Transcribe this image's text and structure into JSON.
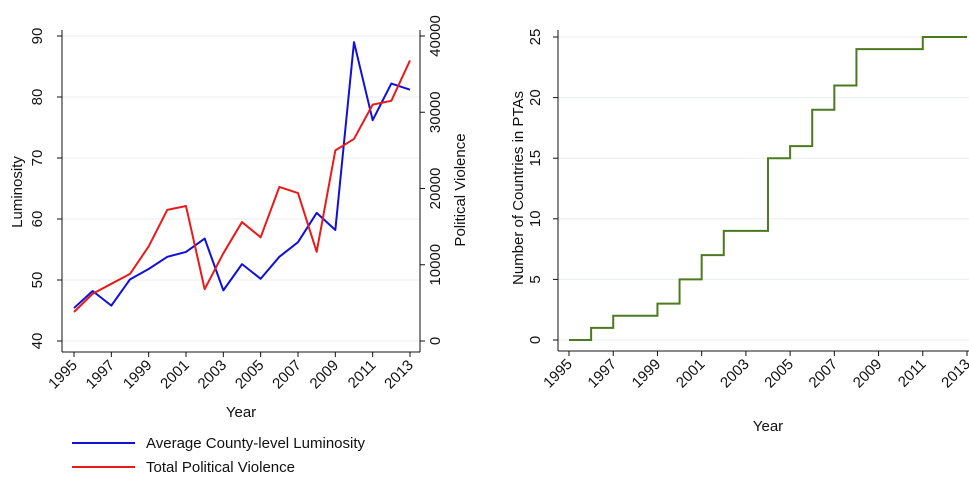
{
  "chart_data": [
    {
      "type": "line",
      "xlabel": "Year",
      "ylabel": "Luminosity",
      "y2label": "Political Violence",
      "x": [
        1995,
        1996,
        1997,
        1998,
        1999,
        2000,
        2001,
        2002,
        2003,
        2004,
        2005,
        2006,
        2007,
        2008,
        2009,
        2010,
        2011,
        2012,
        2013
      ],
      "xticks": [
        1995,
        1997,
        1999,
        2001,
        2003,
        2005,
        2007,
        2009,
        2011,
        2013
      ],
      "yticks": [
        40,
        50,
        60,
        70,
        80,
        90
      ],
      "y2ticks": [
        0,
        10000,
        20000,
        30000,
        40000
      ],
      "ylim": [
        40,
        90
      ],
      "y2lim": [
        0,
        40000
      ],
      "xlim": [
        1995,
        2013
      ],
      "grid": true,
      "legend_position": "bottom",
      "series": [
        {
          "name": "Average County-level Luminosity",
          "axis": "left",
          "color": "#1010d8",
          "values": [
            45.4,
            48.2,
            45.8,
            50.1,
            51.8,
            53.8,
            54.6,
            56.8,
            48.3,
            52.6,
            50.2,
            53.8,
            56.2,
            61.0,
            58.2,
            89.0,
            76.2,
            82.2,
            81.2
          ]
        },
        {
          "name": "Total Political Violence",
          "axis": "right",
          "color": "#e81a1a",
          "values": [
            3800,
            6200,
            7500,
            8800,
            12400,
            17200,
            17700,
            6800,
            11500,
            15600,
            13600,
            20200,
            19400,
            11700,
            25000,
            26500,
            31000,
            31500,
            36800
          ]
        }
      ]
    },
    {
      "type": "line",
      "step": true,
      "xlabel": "Year",
      "ylabel": "Number of Countries in PTAs",
      "x": [
        1995,
        1996,
        1997,
        1998,
        1999,
        2000,
        2001,
        2002,
        2003,
        2004,
        2005,
        2006,
        2007,
        2008,
        2009,
        2010,
        2011,
        2012,
        2013
      ],
      "xticks": [
        1995,
        1997,
        1999,
        2001,
        2003,
        2005,
        2007,
        2009,
        2011,
        2013
      ],
      "yticks": [
        0,
        5,
        10,
        15,
        20,
        25
      ],
      "ylim": [
        0,
        25
      ],
      "xlim": [
        1995,
        2013
      ],
      "grid": true,
      "series": [
        {
          "color": "#4c7a1e",
          "values": [
            0,
            1,
            2,
            2,
            3,
            5,
            7,
            9,
            9,
            15,
            16,
            19,
            21,
            24,
            24,
            24,
            25,
            25,
            25
          ]
        }
      ]
    }
  ]
}
